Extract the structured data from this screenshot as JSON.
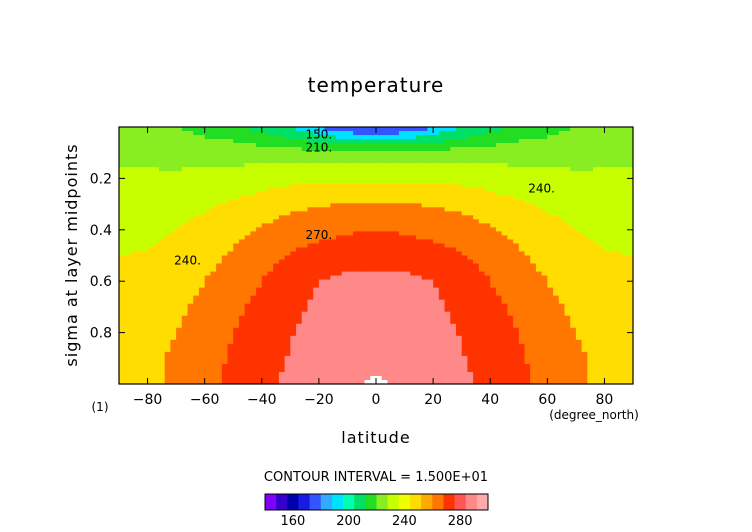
{
  "chart_data": {
    "type": "heatmap",
    "title": "temperature",
    "xlabel": "latitude",
    "ylabel": "sigma at layer midpoints",
    "x_units": "(degree_north)",
    "y_units": "(1)",
    "xlim": [
      -90,
      90
    ],
    "ylim": [
      1.0,
      0.0
    ],
    "y_inverted": true,
    "x_ticks": [
      -80,
      -60,
      -40,
      -20,
      0,
      20,
      40,
      60,
      80
    ],
    "x_tick_labels": [
      "−80",
      "−60",
      "−40",
      "−20",
      "0",
      "20",
      "40",
      "60",
      "80"
    ],
    "y_ticks": [
      0.2,
      0.4,
      0.6,
      0.8
    ],
    "y_tick_labels": [
      "0.2",
      "0.4",
      "0.6",
      "0.8"
    ],
    "contour_interval_text": "CONTOUR INTERVAL = 1.500E+01",
    "contour_labels": [
      "150.",
      "210.",
      "240.",
      "240.",
      "270."
    ],
    "colorbar": {
      "colors": [
        "#8000ff",
        "#3300cc",
        "#0000aa",
        "#1a1ae6",
        "#3355ff",
        "#33aaff",
        "#00e0ff",
        "#00ffb0",
        "#00e066",
        "#22dd22",
        "#88ee22",
        "#c8ff00",
        "#eeff00",
        "#ffdd00",
        "#ffaa00",
        "#ff7700",
        "#ff3300",
        "#ff5555",
        "#ff8888",
        "#ffaaaa"
      ],
      "tick_values": [
        160,
        200,
        240,
        280
      ],
      "tick_labels": [
        "160",
        "200",
        "240",
        "280"
      ],
      "min": 140,
      "max": 300
    },
    "grid": false,
    "legend": "none",
    "levels": [
      150,
      165,
      180,
      195,
      210,
      225,
      240,
      255,
      270,
      285,
      300
    ],
    "level_colors": [
      "#0000aa",
      "#3355ff",
      "#00e0ff",
      "#00e066",
      "#22dd22",
      "#88ee22",
      "#c8ff00",
      "#ffdd00",
      "#ff7700",
      "#ff3300",
      "#ff8888",
      "#ffffff"
    ],
    "x": [
      -90,
      -80,
      -70,
      -60,
      -50,
      -40,
      -30,
      -20,
      -10,
      0,
      10,
      20,
      30,
      40,
      50,
      60,
      70,
      80,
      90
    ],
    "y": [
      0.0,
      0.1,
      0.2,
      0.3,
      0.4,
      0.5,
      0.6,
      0.7,
      0.8,
      0.9,
      1.0
    ],
    "values": [
      [
        210,
        210,
        210,
        205,
        200,
        190,
        180,
        165,
        150,
        148,
        150,
        165,
        180,
        190,
        200,
        205,
        210,
        210,
        210
      ],
      [
        220,
        220,
        219,
        218,
        218,
        217,
        216,
        216,
        215,
        215,
        215,
        216,
        216,
        217,
        218,
        218,
        219,
        220,
        220
      ],
      [
        228,
        228,
        228,
        230,
        232,
        234,
        236,
        237,
        238,
        238,
        238,
        237,
        236,
        234,
        232,
        230,
        228,
        228,
        228
      ],
      [
        232,
        233,
        235,
        238,
        242,
        246,
        251,
        254,
        255,
        256,
        255,
        254,
        251,
        246,
        242,
        238,
        235,
        233,
        232
      ],
      [
        236,
        237,
        240,
        244,
        250,
        257,
        262,
        265,
        268,
        270,
        268,
        265,
        262,
        257,
        250,
        244,
        240,
        237,
        236
      ],
      [
        240,
        241,
        244,
        250,
        257,
        265,
        271,
        276,
        279,
        280,
        279,
        276,
        271,
        265,
        257,
        250,
        244,
        241,
        240
      ],
      [
        243,
        244,
        248,
        255,
        263,
        270,
        278,
        285,
        288,
        289,
        288,
        285,
        278,
        270,
        263,
        255,
        248,
        244,
        243
      ],
      [
        246,
        247,
        252,
        259,
        267,
        274,
        281,
        288,
        292,
        293,
        292,
        288,
        281,
        274,
        267,
        259,
        252,
        247,
        246
      ],
      [
        248,
        250,
        255,
        262,
        270,
        277,
        284,
        291,
        295,
        296,
        295,
        291,
        284,
        277,
        270,
        262,
        255,
        250,
        248
      ],
      [
        249,
        252,
        257,
        264,
        272,
        279,
        286,
        293,
        297,
        298,
        297,
        293,
        286,
        279,
        272,
        264,
        257,
        252,
        249
      ],
      [
        248,
        252,
        258,
        266,
        274,
        281,
        288,
        295,
        299,
        301,
        299,
        295,
        288,
        281,
        274,
        266,
        258,
        252,
        248
      ]
    ]
  }
}
